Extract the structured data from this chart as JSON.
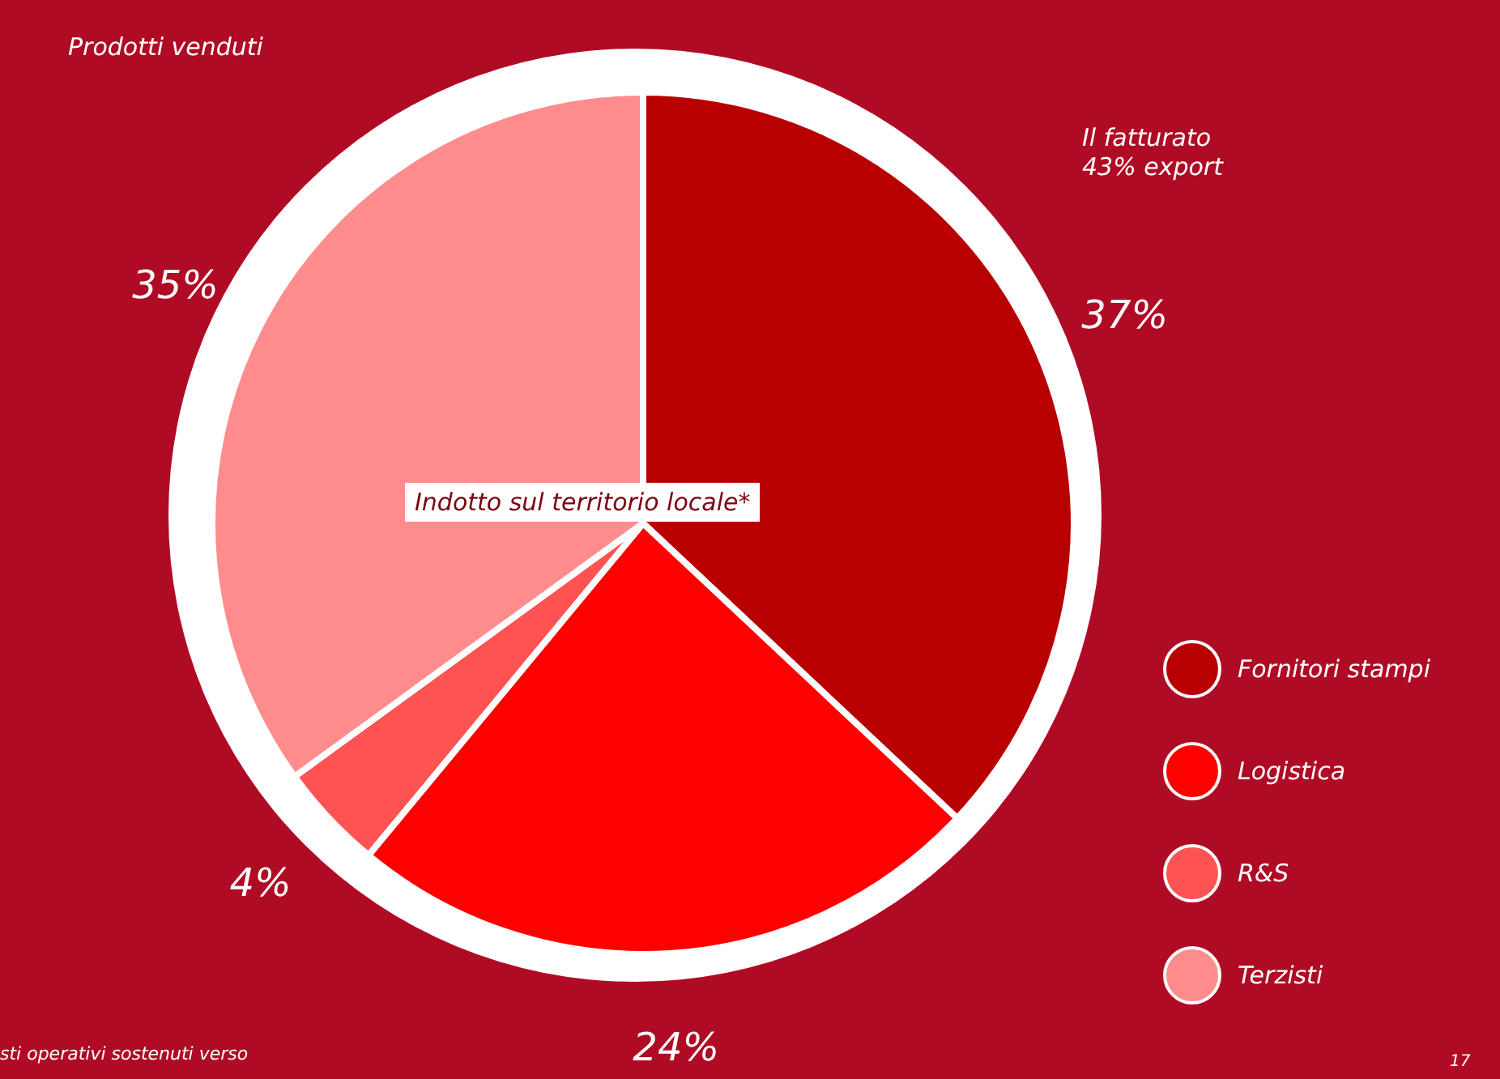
{
  "chart_data": {
    "type": "pie",
    "title": "Indotto sul territorio locale*",
    "categories": [
      "Fornitori stampi",
      "Logistica",
      "R&S",
      "Terzisti"
    ],
    "values": [
      37,
      24,
      4,
      35
    ],
    "colors": [
      "#b80000",
      "#ff0000",
      "#ff5252",
      "#ff8c8c"
    ],
    "legend": "right",
    "value_labels": [
      "37%",
      "24%",
      "4%",
      "35%"
    ],
    "annotations": [
      "Prodotti venduti",
      "Il fatturato\n43% export",
      "sti operativi sostenuti verso",
      "17"
    ]
  }
}
